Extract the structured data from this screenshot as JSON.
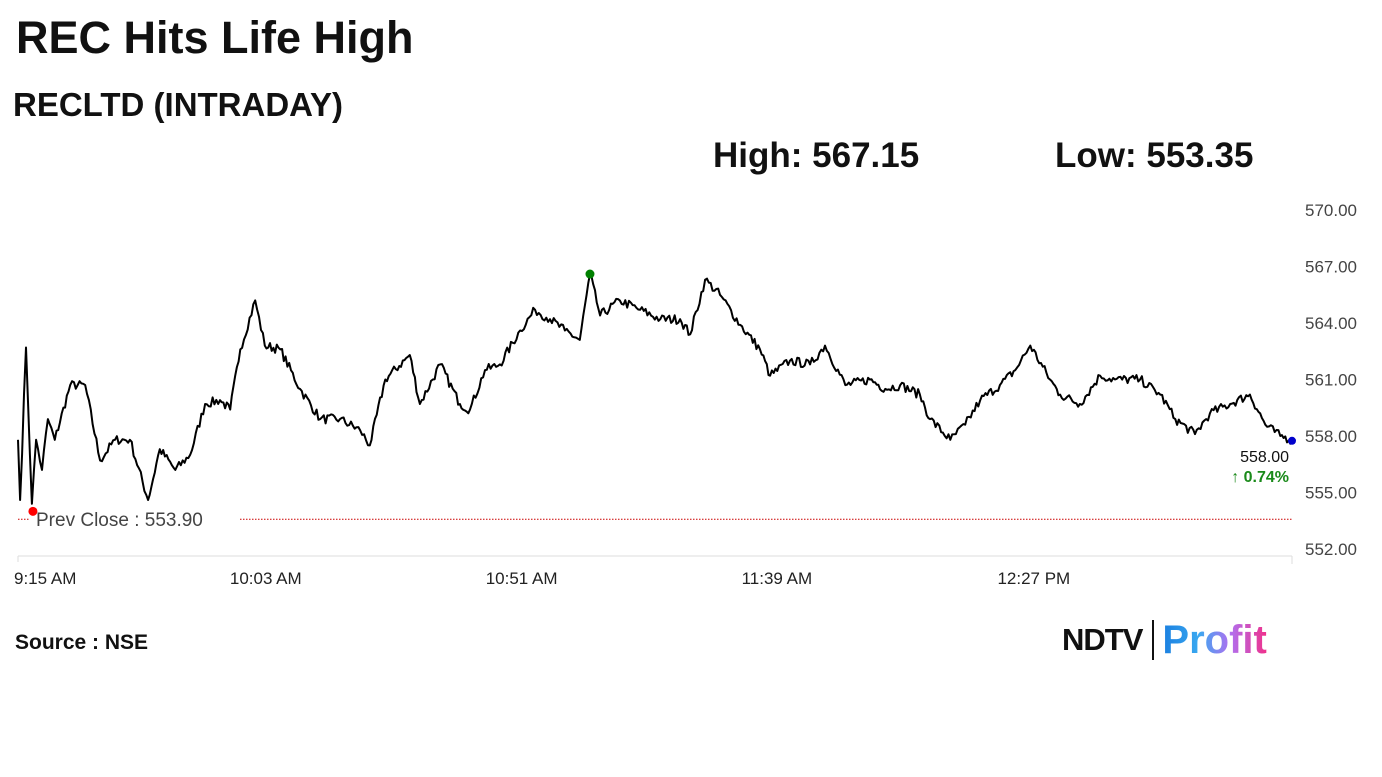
{
  "header": {
    "title": "REC Hits Life High",
    "subtitle": "RECLTD (INTRADAY)",
    "high_label": "High: 567.15",
    "low_label": "Low: 553.35"
  },
  "footer": {
    "source": "Source : NSE",
    "logo_text": "NDTV | Profit"
  },
  "colors": {
    "line": "#000000",
    "high_marker": "#008000",
    "low_marker": "#ff0000",
    "last_marker": "#0000cc",
    "prev_close": "#cc0000",
    "change": "#1a8a1a"
  },
  "chart_data": {
    "type": "line",
    "title": "RECLTD (INTRADAY)",
    "xlabel": "",
    "ylabel": "",
    "ylim": [
      552,
      570
    ],
    "x_unit": "minutes since 9:15 AM",
    "xlim": [
      0,
      239
    ],
    "x_ticks": [
      {
        "value": 0,
        "label": "9:15 AM"
      },
      {
        "value": 48,
        "label": "10:03 AM"
      },
      {
        "value": 96,
        "label": "10:51 AM"
      },
      {
        "value": 144,
        "label": "11:39 AM"
      },
      {
        "value": 192,
        "label": "12:27 PM"
      }
    ],
    "y_ticks": [
      {
        "value": 570,
        "label": "570.00"
      },
      {
        "value": 567,
        "label": "567.00"
      },
      {
        "value": 564,
        "label": "564.00"
      },
      {
        "value": 561,
        "label": "561.00"
      },
      {
        "value": 558,
        "label": "558.00"
      },
      {
        "value": 555,
        "label": "555.00"
      },
      {
        "value": 552,
        "label": "552.00"
      }
    ],
    "prev_close": {
      "value": 553.9,
      "label": "Prev Close : 553.90"
    },
    "last": {
      "value": 558.0,
      "label": "558.00",
      "change": "↑ 0.74%"
    },
    "high_point": [
      107.3,
      566.6
    ],
    "low_point": [
      2.8,
      554.0
    ],
    "series": [
      {
        "name": "RECLTD",
        "points": [
          [
            0,
            557.8
          ],
          [
            0.4,
            554.6
          ],
          [
            1.5,
            562.7
          ],
          [
            2.6,
            554.4
          ],
          [
            3.4,
            557.8
          ],
          [
            4.5,
            556.2
          ],
          [
            5.6,
            558.9
          ],
          [
            6.9,
            557.8
          ],
          [
            9.8,
            560.7
          ],
          [
            12.6,
            560.7
          ],
          [
            15.4,
            556.7
          ],
          [
            18.2,
            557.8
          ],
          [
            21,
            557.8
          ],
          [
            24.4,
            554.6
          ],
          [
            26.6,
            557.3
          ],
          [
            29.5,
            556.2
          ],
          [
            32.3,
            557.0
          ],
          [
            35.1,
            559.7
          ],
          [
            37.9,
            559.9
          ],
          [
            39.8,
            559.4
          ],
          [
            41.7,
            562.6
          ],
          [
            44.5,
            565.2
          ],
          [
            46.3,
            562.8
          ],
          [
            49.2,
            562.6
          ],
          [
            52.9,
            560.5
          ],
          [
            56.7,
            558.9
          ],
          [
            60.4,
            558.9
          ],
          [
            64.2,
            558.3
          ],
          [
            66,
            557.5
          ],
          [
            68.9,
            561.0
          ],
          [
            73.5,
            562.3
          ],
          [
            75.4,
            559.7
          ],
          [
            79.2,
            561.8
          ],
          [
            82.9,
            559.7
          ],
          [
            84.8,
            559.4
          ],
          [
            87.6,
            561.5
          ],
          [
            90.4,
            561.8
          ],
          [
            94.2,
            563.6
          ],
          [
            97,
            564.7
          ],
          [
            99.8,
            564.2
          ],
          [
            102.6,
            563.6
          ],
          [
            105.4,
            563.1
          ],
          [
            107.3,
            566.6
          ],
          [
            109.2,
            564.4
          ],
          [
            112.9,
            565.2
          ],
          [
            116.7,
            564.7
          ],
          [
            120.5,
            564.2
          ],
          [
            124.2,
            564.2
          ],
          [
            126.1,
            563.4
          ],
          [
            128.9,
            566.3
          ],
          [
            131.7,
            565.5
          ],
          [
            135.5,
            563.9
          ],
          [
            139.2,
            562.6
          ],
          [
            141.1,
            561.2
          ],
          [
            144.8,
            562.0
          ],
          [
            148.6,
            561.8
          ],
          [
            151.4,
            562.8
          ],
          [
            155.2,
            560.7
          ],
          [
            159.8,
            561.0
          ],
          [
            162.7,
            560.5
          ],
          [
            165.5,
            560.7
          ],
          [
            169.2,
            560.2
          ],
          [
            171.1,
            558.9
          ],
          [
            174.9,
            557.8
          ],
          [
            177.7,
            558.6
          ],
          [
            180.5,
            559.9
          ],
          [
            184.2,
            560.7
          ],
          [
            187.1,
            561.5
          ],
          [
            189.9,
            562.8
          ],
          [
            193.6,
            561.0
          ],
          [
            195.5,
            560.2
          ],
          [
            199.2,
            559.7
          ],
          [
            203,
            561.2
          ],
          [
            205.8,
            561.0
          ],
          [
            210.5,
            561.0
          ],
          [
            214.3,
            560.2
          ],
          [
            217.1,
            558.9
          ],
          [
            220.8,
            558.1
          ],
          [
            223.6,
            559.2
          ],
          [
            227.4,
            559.7
          ],
          [
            231.1,
            560.2
          ],
          [
            234,
            558.6
          ],
          [
            236.8,
            558.0
          ],
          [
            239,
            557.8
          ]
        ]
      }
    ]
  }
}
